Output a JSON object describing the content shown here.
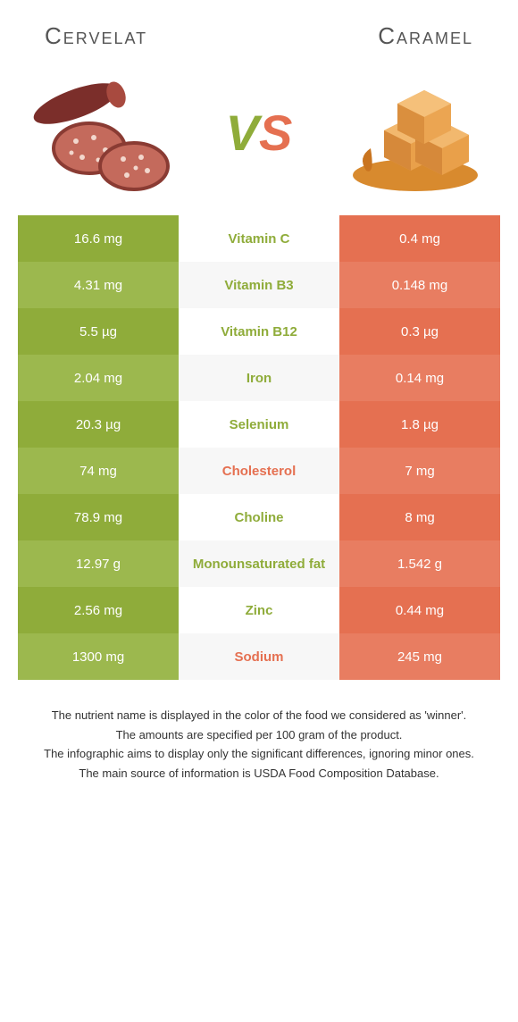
{
  "left": {
    "name": "Cervelat",
    "color": "#8fac3a",
    "color_alt": "#9cb84e"
  },
  "right": {
    "name": "Caramel",
    "color": "#e57051",
    "color_alt": "#e87d61"
  },
  "vs_text": {
    "v": "V",
    "s": "S"
  },
  "rows": [
    {
      "left": "16.6 mg",
      "label": "Vitamin C",
      "right": "0.4 mg",
      "winner": "left"
    },
    {
      "left": "4.31 mg",
      "label": "Vitamin B3",
      "right": "0.148 mg",
      "winner": "left"
    },
    {
      "left": "5.5 µg",
      "label": "Vitamin B12",
      "right": "0.3 µg",
      "winner": "left"
    },
    {
      "left": "2.04 mg",
      "label": "Iron",
      "right": "0.14 mg",
      "winner": "left"
    },
    {
      "left": "20.3 µg",
      "label": "Selenium",
      "right": "1.8 µg",
      "winner": "left"
    },
    {
      "left": "74 mg",
      "label": "Cholesterol",
      "right": "7 mg",
      "winner": "right"
    },
    {
      "left": "78.9 mg",
      "label": "Choline",
      "right": "8 mg",
      "winner": "left"
    },
    {
      "left": "12.97 g",
      "label": "Monounsaturated fat",
      "right": "1.542 g",
      "winner": "left"
    },
    {
      "left": "2.56 mg",
      "label": "Zinc",
      "right": "0.44 mg",
      "winner": "left"
    },
    {
      "left": "1300 mg",
      "label": "Sodium",
      "right": "245 mg",
      "winner": "right"
    }
  ],
  "row_bg": {
    "even": "#ffffff",
    "odd": "#f7f7f7"
  },
  "footer": [
    "The nutrient name is displayed in the color of the food we considered as 'winner'.",
    "The amounts are specified per 100 gram of the product.",
    "The infographic aims to display only the significant differences, ignoring minor ones.",
    "The main source of information is USDA Food Composition Database."
  ]
}
